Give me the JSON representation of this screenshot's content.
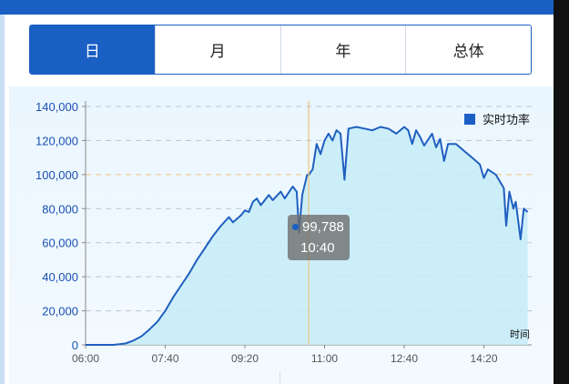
{
  "tabs": [
    {
      "label": "日",
      "active": true
    },
    {
      "label": "月",
      "active": false
    },
    {
      "label": "年",
      "active": false
    },
    {
      "label": "总体",
      "active": false
    }
  ],
  "chart_data": {
    "type": "area",
    "legend": "实时功率",
    "legend_position": "top-right",
    "x_unit_label": "时间",
    "y_ticks": [
      "0",
      "20,000",
      "40,000",
      "60,000",
      "80,000",
      "100,000",
      "120,000",
      "140,000"
    ],
    "x_ticks": [
      "06:00",
      "07:40",
      "09:20",
      "11:00",
      "12:40",
      "14:20"
    ],
    "ylim": [
      0,
      140000
    ],
    "x_range": [
      "06:00",
      "15:20"
    ],
    "grid": true,
    "colors": {
      "line": "#1f5fbf",
      "fill": "#c6ecf8",
      "accent": "#1a5fc4",
      "crosshair": "#f0c27a"
    },
    "tooltip": {
      "value": "99,788",
      "time": "10:40"
    },
    "series": [
      {
        "name": "实时功率",
        "points": [
          [
            "06:00",
            0
          ],
          [
            "06:35",
            0
          ],
          [
            "06:50",
            800
          ],
          [
            "07:00",
            2500
          ],
          [
            "07:10",
            5000
          ],
          [
            "07:20",
            9000
          ],
          [
            "07:30",
            13500
          ],
          [
            "07:40",
            20000
          ],
          [
            "07:50",
            28000
          ],
          [
            "08:00",
            35000
          ],
          [
            "08:10",
            42000
          ],
          [
            "08:20",
            50000
          ],
          [
            "08:30",
            57000
          ],
          [
            "08:40",
            64000
          ],
          [
            "08:50",
            70000
          ],
          [
            "09:00",
            75000
          ],
          [
            "09:05",
            72000
          ],
          [
            "09:15",
            76000
          ],
          [
            "09:20",
            79000
          ],
          [
            "09:25",
            78000
          ],
          [
            "09:30",
            84000
          ],
          [
            "09:35",
            86000
          ],
          [
            "09:40",
            82000
          ],
          [
            "09:50",
            88000
          ],
          [
            "09:55",
            85000
          ],
          [
            "10:05",
            90000
          ],
          [
            "10:10",
            86000
          ],
          [
            "10:20",
            93000
          ],
          [
            "10:25",
            90000
          ],
          [
            "10:28",
            66000
          ],
          [
            "10:32",
            88000
          ],
          [
            "10:38",
            99788
          ],
          [
            "10:40",
            99788
          ],
          [
            "10:45",
            103000
          ],
          [
            "10:50",
            118000
          ],
          [
            "10:55",
            112000
          ],
          [
            "11:00",
            120000
          ],
          [
            "11:05",
            124000
          ],
          [
            "11:10",
            120000
          ],
          [
            "11:15",
            126000
          ],
          [
            "11:20",
            124000
          ],
          [
            "11:25",
            97000
          ],
          [
            "11:30",
            127000
          ],
          [
            "11:40",
            128000
          ],
          [
            "11:50",
            127000
          ],
          [
            "12:00",
            126000
          ],
          [
            "12:10",
            128000
          ],
          [
            "12:20",
            127000
          ],
          [
            "12:30",
            124000
          ],
          [
            "12:40",
            128000
          ],
          [
            "12:45",
            126000
          ],
          [
            "12:50",
            118000
          ],
          [
            "12:55",
            126000
          ],
          [
            "13:00",
            122000
          ],
          [
            "13:05",
            117000
          ],
          [
            "13:15",
            124000
          ],
          [
            "13:20",
            116000
          ],
          [
            "13:25",
            121000
          ],
          [
            "13:30",
            108000
          ],
          [
            "13:35",
            118000
          ],
          [
            "13:45",
            118000
          ],
          [
            "13:55",
            114000
          ],
          [
            "14:05",
            110000
          ],
          [
            "14:15",
            106000
          ],
          [
            "14:20",
            98000
          ],
          [
            "14:25",
            103000
          ],
          [
            "14:35",
            100000
          ],
          [
            "14:45",
            92000
          ],
          [
            "14:48",
            70000
          ],
          [
            "14:52",
            90000
          ],
          [
            "14:57",
            80000
          ],
          [
            "15:00",
            84000
          ],
          [
            "15:06",
            62000
          ],
          [
            "15:10",
            80000
          ],
          [
            "15:15",
            78000
          ]
        ]
      }
    ]
  }
}
